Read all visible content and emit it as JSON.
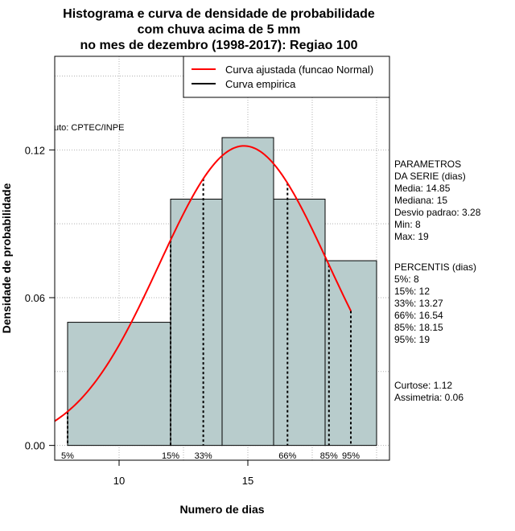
{
  "chart_data": {
    "type": "histogram",
    "title_lines": [
      "Histograma e curva de densidade de probabilidade",
      "com chuva acima de 5 mm",
      "no mes de dezembro (1998-2017): Regiao 100"
    ],
    "xlabel": "Numero de dias",
    "ylabel": "Densidade de probabilidade",
    "xlim": [
      7.5,
      20.5
    ],
    "ylim": [
      -0.006,
      0.158
    ],
    "x_ticks": [
      10,
      15
    ],
    "y_ticks": [
      0.0,
      0.06,
      0.12
    ],
    "y_tick_labels": [
      "0.00",
      "0.06",
      "0.12"
    ],
    "grid": true,
    "bins": [
      {
        "start": 8,
        "end": 12,
        "density": 0.05
      },
      {
        "start": 12,
        "end": 14,
        "density": 0.1
      },
      {
        "start": 14,
        "end": 16,
        "density": 0.125
      },
      {
        "start": 16,
        "end": 18,
        "density": 0.1
      },
      {
        "start": 18,
        "end": 20,
        "density": 0.075
      }
    ],
    "normal_curve": {
      "mean": 14.85,
      "sd": 3.28,
      "from": 7.5,
      "to": 19,
      "color": "#ff0000"
    },
    "percentiles": [
      {
        "label": "5%",
        "x": 8
      },
      {
        "label": "15%",
        "x": 12
      },
      {
        "label": "33%",
        "x": 13.27
      },
      {
        "label": "66%",
        "x": 16.54
      },
      {
        "label": "85%",
        "x": 18.15
      },
      {
        "label": "95%",
        "x": 19
      }
    ],
    "legend": {
      "position": "top-right",
      "entries": [
        {
          "label": "Curva ajustada (funcao Normal)",
          "color": "#ff0000"
        },
        {
          "label": "Curva empirica",
          "color": "#000000"
        }
      ]
    },
    "annotation": "uto: CPTEC/INPE",
    "bar_color": "#b8cccc"
  },
  "side_panel": {
    "param_lines": [
      "PARAMETROS",
      "DA SERIE (dias)",
      "  Media: 14.85",
      "  Mediana: 15",
      "  Desvio padrao: 3.28",
      "  Min: 8",
      "  Max: 19"
    ],
    "percentile_lines": [
      "PERCENTIS (dias)",
      "  5%: 8",
      "  15%: 12",
      "  33%: 13.27",
      "  66%: 16.54",
      "  85%: 18.15",
      "  95%: 19"
    ],
    "stats_lines": [
      "     Curtose: 1.12",
      "Assimetria: 0.06"
    ]
  }
}
